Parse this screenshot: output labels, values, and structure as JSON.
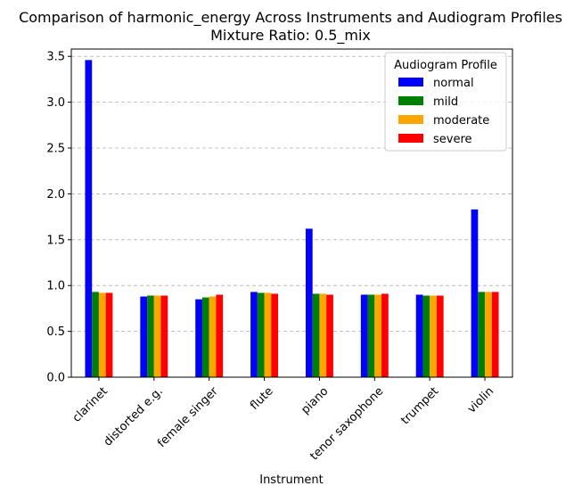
{
  "chart_data": {
    "type": "bar",
    "title": "Comparison of harmonic_energy Across Instruments and Audiogram Profiles",
    "subtitle": "Mixture Ratio: 0.5_mix",
    "xlabel": "Instrument",
    "ylabel": "",
    "ylim": [
      0,
      3.58
    ],
    "yticks": [
      "0.0",
      "0.5",
      "1.0",
      "1.5",
      "2.0",
      "2.5",
      "3.0",
      "3.5"
    ],
    "grid": "y-dashed",
    "categories": [
      "clarinet",
      "distorted e.g.",
      "female singer",
      "flute",
      "piano",
      "tenor saxophone",
      "trumpet",
      "violin"
    ],
    "legend_title": "Audiogram Profile",
    "legend_position": "top-right",
    "series": [
      {
        "name": "normal",
        "color": "#0000ff",
        "values": [
          3.46,
          0.88,
          0.85,
          0.93,
          1.62,
          0.9,
          0.9,
          1.83
        ]
      },
      {
        "name": "mild",
        "color": "#008000",
        "values": [
          0.93,
          0.89,
          0.87,
          0.92,
          0.91,
          0.9,
          0.89,
          0.93
        ]
      },
      {
        "name": "moderate",
        "color": "#ffa500",
        "values": [
          0.92,
          0.89,
          0.88,
          0.92,
          0.91,
          0.9,
          0.89,
          0.93
        ]
      },
      {
        "name": "severe",
        "color": "#ff0000",
        "values": [
          0.92,
          0.89,
          0.9,
          0.91,
          0.9,
          0.91,
          0.89,
          0.93
        ]
      }
    ]
  }
}
